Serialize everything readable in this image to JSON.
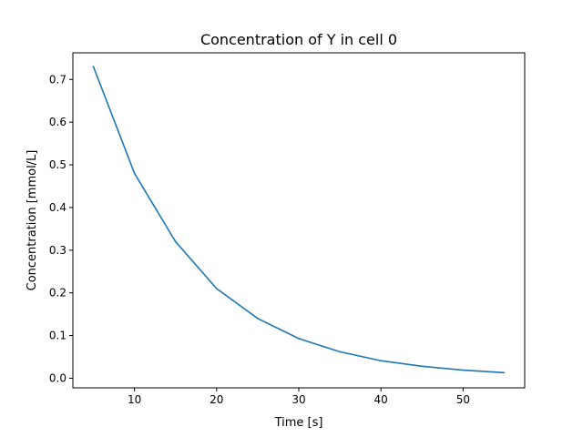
{
  "chart_data": {
    "type": "line",
    "title": "Concentration of Y in cell 0",
    "xlabel": "Time [s]",
    "ylabel": "Concentration [mmol/L]",
    "xlim": [
      2.5,
      57.5
    ],
    "ylim": [
      -0.0225,
      0.7625
    ],
    "xticks": [
      10,
      20,
      30,
      40,
      50
    ],
    "yticks": [
      0.0,
      0.1,
      0.2,
      0.3,
      0.4,
      0.5,
      0.6,
      0.7
    ],
    "grid": false,
    "legend": "none",
    "series": [
      {
        "color": "#1f77b4",
        "x": [
          5,
          10,
          15,
          20,
          25,
          30,
          35,
          40,
          45,
          50,
          55
        ],
        "y": [
          0.73,
          0.48,
          0.32,
          0.21,
          0.14,
          0.093,
          0.062,
          0.041,
          0.028,
          0.019,
          0.013
        ]
      }
    ]
  }
}
